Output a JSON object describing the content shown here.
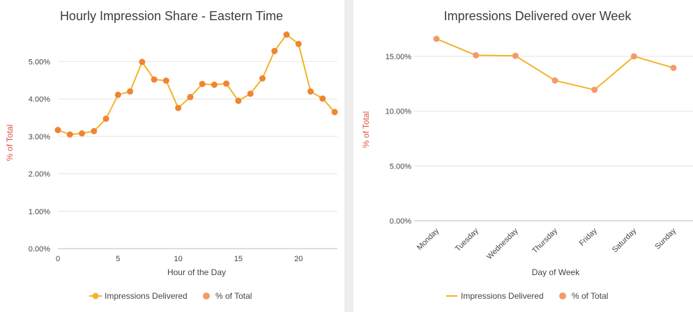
{
  "colors": {
    "line": "#f2b32b",
    "point": "#f08433",
    "point_light": "#f39a6b",
    "y_title": "#e0523e",
    "grid": "#e4e4e4"
  },
  "chart_data": [
    {
      "type": "line",
      "title": "Hourly Impression Share - Eastern Time",
      "xlabel": "Hour of the Day",
      "ylabel": "% of Total",
      "x": [
        0,
        1,
        2,
        3,
        4,
        5,
        6,
        7,
        8,
        9,
        10,
        11,
        12,
        13,
        14,
        15,
        16,
        17,
        18,
        19,
        20,
        21,
        22,
        23
      ],
      "series": [
        {
          "name": "Impressions Delivered",
          "values": [
            3.17,
            3.05,
            3.08,
            3.14,
            3.47,
            4.11,
            4.2,
            4.99,
            4.52,
            4.49,
            3.76,
            4.05,
            4.4,
            4.38,
            4.41,
            3.95,
            4.14,
            4.55,
            5.28,
            5.72,
            5.47,
            4.2,
            4.01,
            3.65
          ]
        }
      ],
      "x_ticks": [
        "0",
        "5",
        "10",
        "15",
        "20"
      ],
      "x_tick_values": [
        0,
        5,
        10,
        15,
        20
      ],
      "y_ticks": [
        "0.00%",
        "1.00%",
        "2.00%",
        "3.00%",
        "4.00%",
        "5.00%"
      ],
      "y_tick_values": [
        0,
        1,
        2,
        3,
        4,
        5
      ],
      "xlim": [
        0,
        23
      ],
      "ylim": [
        0,
        5.9
      ],
      "grid": true,
      "legend": {
        "position": "bottom",
        "entries": [
          "Impressions Delivered",
          "% of Total"
        ]
      }
    },
    {
      "type": "line",
      "title": "Impressions Delivered over Week",
      "xlabel": "Day of Week",
      "ylabel": "% of Total",
      "categories": [
        "Monday",
        "Tuesday",
        "Wednesday",
        "Thursday",
        "Friday",
        "Saturday",
        "Sunday"
      ],
      "series": [
        {
          "name": "Impressions Delivered",
          "values": [
            16.6,
            15.1,
            15.05,
            12.8,
            11.95,
            15.0,
            13.95
          ]
        }
      ],
      "y_ticks": [
        "0.00%",
        "5.00%",
        "10.00%",
        "15.00%"
      ],
      "y_tick_values": [
        0,
        5,
        10,
        15
      ],
      "ylim": [
        0,
        17.6
      ],
      "grid": true,
      "legend": {
        "position": "bottom",
        "entries": [
          "Impressions Delivered",
          "% of Total"
        ]
      }
    }
  ]
}
